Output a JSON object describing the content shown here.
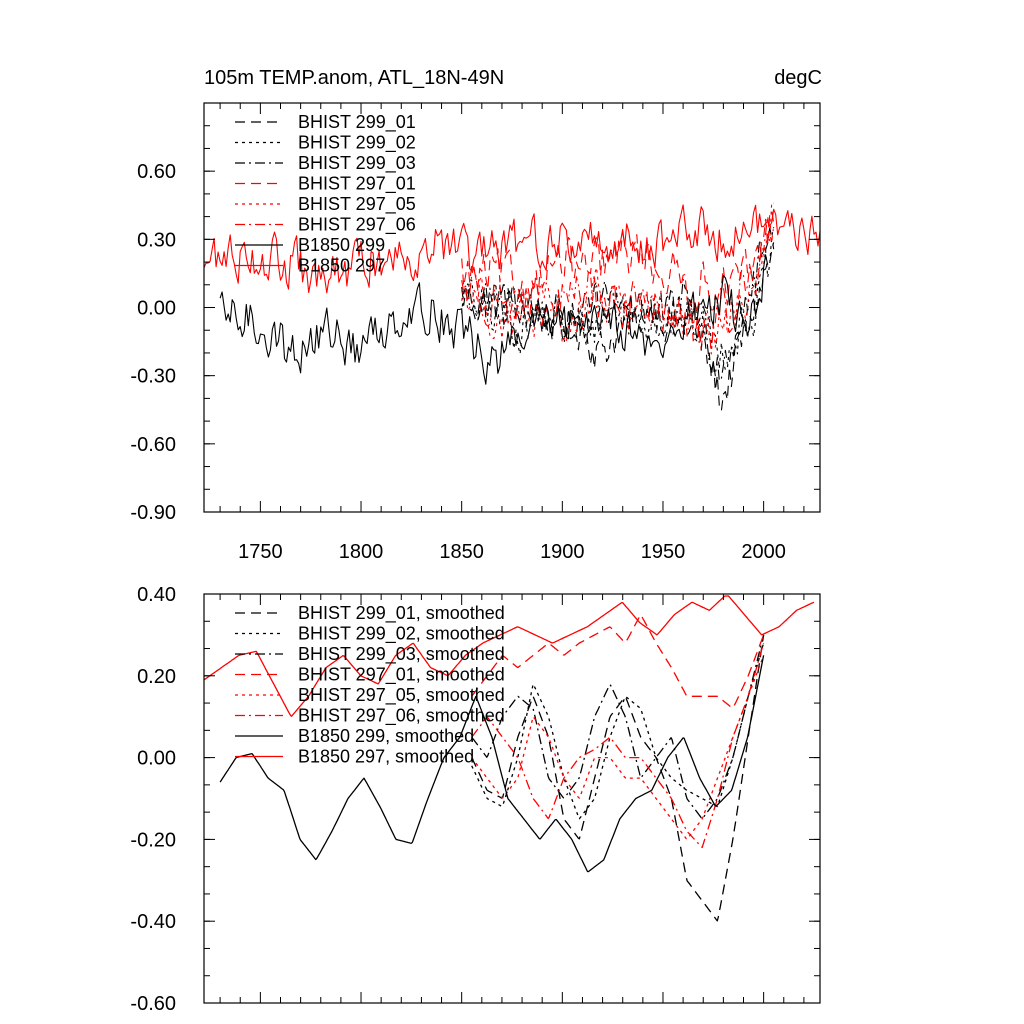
{
  "chart_data": [
    {
      "type": "line",
      "title": "105m TEMP.anom, ATL_18N-49N",
      "units": "degC",
      "xlim": [
        1722,
        2028
      ],
      "ylim": [
        -0.9,
        0.9
      ],
      "xticks": [
        "1750",
        "1800",
        "1850",
        "1900",
        "1950",
        "2000"
      ],
      "yticks": [
        "-0.90",
        "-0.60",
        "-0.30",
        "0.00",
        "0.30",
        "0.60"
      ],
      "legend_position": "top-left",
      "series": [
        {
          "name": "BHIST 299_01",
          "color": "#000000",
          "dash": "longdash",
          "x_start": 1850,
          "x_end": 2005,
          "base": [
            0.05,
            0.02,
            0.0,
            0.0,
            -0.02,
            -0.05,
            -0.05,
            -0.08,
            -0.2,
            -0.1,
            -0.03,
            0.02,
            -0.05,
            -0.1,
            -0.18,
            -0.4,
            -0.2,
            0.05,
            0.25
          ]
        },
        {
          "name": "BHIST 299_02",
          "color": "#000000",
          "dash": "dotted",
          "x_start": 1850,
          "x_end": 2005,
          "base": [
            0.05,
            0.0,
            -0.05,
            -0.08,
            -0.05,
            -0.02,
            -0.08,
            -0.1,
            -0.05,
            0.0,
            -0.05,
            -0.02,
            -0.08,
            -0.05,
            -0.1,
            -0.18,
            -0.08,
            0.0,
            0.25
          ]
        },
        {
          "name": "BHIST 299_03",
          "color": "#000000",
          "dash": "dashdot",
          "x_start": 1850,
          "x_end": 2005,
          "base": [
            0.08,
            0.02,
            0.0,
            0.05,
            0.0,
            -0.05,
            -0.1,
            -0.05,
            0.0,
            0.05,
            0.0,
            -0.05,
            -0.05,
            0.05,
            -0.1,
            -0.25,
            -0.05,
            0.15,
            0.35
          ]
        },
        {
          "name": "BHIST 297_01",
          "color": "#ff0000",
          "dash": "longdash",
          "x_start": 1850,
          "x_end": 2005,
          "base": [
            0.15,
            0.12,
            0.15,
            0.1,
            0.1,
            0.18,
            0.2,
            0.15,
            0.18,
            0.22,
            0.25,
            0.2,
            0.15,
            0.1,
            0.1,
            0.08,
            0.1,
            0.2,
            0.4
          ]
        },
        {
          "name": "BHIST 297_05",
          "color": "#ff0000",
          "dash": "dotted",
          "x_start": 1850,
          "x_end": 2005,
          "base": [
            0.08,
            0.05,
            -0.05,
            -0.08,
            -0.05,
            0.0,
            -0.08,
            -0.05,
            0.05,
            0.05,
            0.0,
            -0.02,
            -0.05,
            -0.1,
            -0.15,
            -0.1,
            0.0,
            0.15,
            0.45
          ]
        },
        {
          "name": "BHIST 297_06",
          "color": "#ff0000",
          "dash": "dashdot",
          "x_start": 1850,
          "x_end": 2005,
          "base": [
            0.1,
            0.08,
            0.05,
            0.0,
            -0.02,
            -0.05,
            0.05,
            0.1,
            0.05,
            0.0,
            0.02,
            0.0,
            -0.05,
            -0.08,
            -0.12,
            -0.05,
            0.05,
            0.18,
            0.35
          ]
        },
        {
          "name": "B1850 299",
          "color": "#000000",
          "dash": "solid",
          "x_start": 1730,
          "x_end": 2002,
          "base": [
            -0.05,
            -0.05,
            -0.08,
            -0.2,
            -0.15,
            -0.1,
            -0.2,
            -0.1,
            0.0,
            0.0,
            -0.05,
            -0.15,
            -0.25,
            -0.15,
            -0.05,
            -0.1,
            -0.05,
            0.0,
            -0.1,
            -0.2,
            -0.1,
            0.0,
            0.05,
            -0.1,
            0.2
          ]
        },
        {
          "name": "B1850 297",
          "color": "#ff0000",
          "dash": "solid",
          "x_start": 1722,
          "x_end": 2028,
          "base": [
            0.2,
            0.22,
            0.25,
            0.2,
            0.18,
            0.1,
            0.15,
            0.2,
            0.22,
            0.25,
            0.28,
            0.25,
            0.2,
            0.25,
            0.3,
            0.3,
            0.28,
            0.3,
            0.3,
            0.28,
            0.3,
            0.32,
            0.35,
            0.32,
            0.35,
            0.38,
            0.35,
            0.3
          ]
        }
      ]
    },
    {
      "type": "line",
      "xlim": [
        1722,
        2028
      ],
      "ylim": [
        -0.6,
        0.4
      ],
      "yticks": [
        "-0.60",
        "-0.40",
        "-0.20",
        "0.00",
        "0.20",
        "0.40"
      ],
      "legend_position": "top-left",
      "series": [
        {
          "name": "BHIST 299_01, smoothed",
          "color": "#000000",
          "dash": "longdash",
          "x_start": 1855,
          "x_end": 2000,
          "values": [
            0.0,
            -0.08,
            -0.1,
            0.05,
            0.15,
            0.05,
            -0.15,
            -0.2,
            -0.05,
            0.1,
            0.15,
            0.05,
            0.0,
            -0.1,
            -0.3,
            -0.35,
            -0.4,
            -0.2,
            0.05,
            0.3
          ]
        },
        {
          "name": "BHIST 299_02, smoothed",
          "color": "#000000",
          "dash": "dotted",
          "x_start": 1855,
          "x_end": 2000,
          "values": [
            -0.02,
            -0.1,
            -0.12,
            0.0,
            0.18,
            0.1,
            -0.05,
            -0.15,
            -0.1,
            0.05,
            0.15,
            0.12,
            0.0,
            -0.05,
            -0.08,
            -0.1,
            -0.12,
            0.0,
            0.15,
            0.28
          ]
        },
        {
          "name": "BHIST 299_03, smoothed",
          "color": "#000000",
          "dash": "dashdot",
          "x_start": 1855,
          "x_end": 2000,
          "values": [
            0.05,
            0.0,
            0.1,
            0.15,
            0.12,
            -0.05,
            -0.1,
            -0.05,
            0.1,
            0.18,
            0.1,
            -0.05,
            0.0,
            0.05,
            -0.1,
            -0.15,
            -0.1,
            0.0,
            0.15,
            0.3
          ]
        },
        {
          "name": "BHIST 297_01, smoothed",
          "color": "#ff0000",
          "dash": "longdash",
          "x_start": 1855,
          "x_end": 2000,
          "values": [
            0.15,
            0.2,
            0.25,
            0.22,
            0.25,
            0.28,
            0.25,
            0.28,
            0.3,
            0.32,
            0.28,
            0.35,
            0.28,
            0.22,
            0.15,
            0.15,
            0.15,
            0.12,
            0.2,
            0.3
          ]
        },
        {
          "name": "BHIST 297_05, smoothed",
          "color": "#ff0000",
          "dash": "dotted",
          "x_start": 1855,
          "x_end": 2000,
          "values": [
            0.0,
            -0.05,
            -0.1,
            -0.05,
            0.1,
            0.05,
            -0.05,
            -0.1,
            0.0,
            0.0,
            -0.05,
            -0.05,
            -0.1,
            -0.15,
            -0.2,
            -0.15,
            -0.05,
            0.05,
            0.15,
            0.25
          ]
        },
        {
          "name": "BHIST 297_06, smoothed",
          "color": "#ff0000",
          "dash": "dashdot",
          "x_start": 1855,
          "x_end": 2000,
          "values": [
            0.05,
            0.1,
            0.05,
            0.0,
            -0.1,
            -0.15,
            -0.05,
            0.0,
            0.02,
            0.05,
            0.0,
            0.0,
            -0.05,
            -0.1,
            -0.18,
            -0.22,
            -0.1,
            0.05,
            0.15,
            0.28
          ]
        },
        {
          "name": "B1850 299, smoothed",
          "color": "#000000",
          "dash": "solid",
          "x_start": 1730,
          "x_end": 2000,
          "values": [
            -0.06,
            0.0,
            0.01,
            -0.05,
            -0.08,
            -0.2,
            -0.25,
            -0.18,
            -0.1,
            -0.05,
            -0.12,
            -0.2,
            -0.21,
            -0.1,
            0.0,
            0.05,
            0.15,
            0.05,
            -0.1,
            -0.15,
            -0.2,
            -0.15,
            -0.2,
            -0.28,
            -0.25,
            -0.15,
            -0.1,
            -0.08,
            0.0,
            0.05,
            -0.05,
            -0.12,
            -0.08,
            0.05,
            0.25
          ]
        },
        {
          "name": "B1850 297, smoothed",
          "color": "#ff0000",
          "dash": "solid",
          "x_start": 1722,
          "x_end": 2025,
          "values": [
            0.19,
            0.22,
            0.25,
            0.26,
            0.18,
            0.1,
            0.15,
            0.22,
            0.25,
            0.2,
            0.18,
            0.25,
            0.28,
            0.22,
            0.2,
            0.25,
            0.28,
            0.3,
            0.32,
            0.3,
            0.28,
            0.3,
            0.32,
            0.35,
            0.38,
            0.33,
            0.3,
            0.35,
            0.38,
            0.36,
            0.4,
            0.35,
            0.3,
            0.32,
            0.36,
            0.38
          ]
        }
      ]
    }
  ]
}
